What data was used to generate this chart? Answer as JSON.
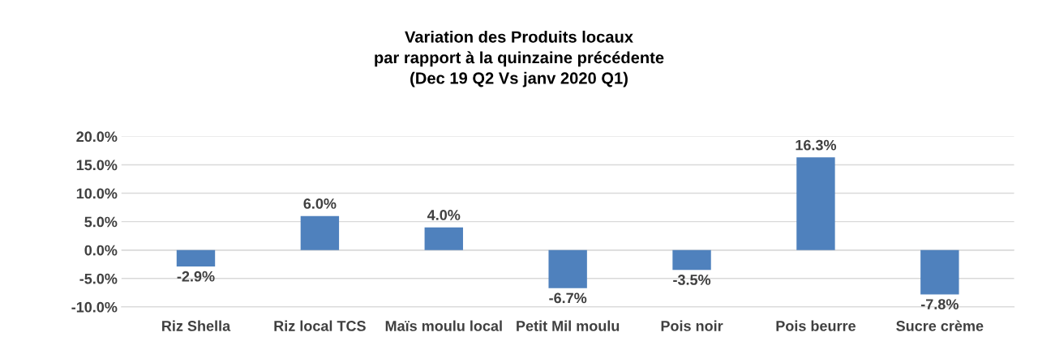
{
  "chart_data": {
    "type": "bar",
    "title": "Variation des Produits locaux\npar rapport à la quinzaine précédente\n(Dec 19 Q2 Vs janv 2020 Q1)",
    "categories": [
      "Riz Shella",
      "Riz local TCS",
      "Maïs moulu local",
      "Petit Mil moulu",
      "Pois noir",
      "Pois beurre",
      "Sucre crème"
    ],
    "values": [
      -2.9,
      6.0,
      4.0,
      -6.7,
      -3.5,
      16.3,
      -7.8
    ],
    "value_labels": [
      "-2.9%",
      "6.0%",
      "4.0%",
      "-6.7%",
      "-3.5%",
      "16.3%",
      "-7.8%"
    ],
    "color": "#4f81bd",
    "ylim": [
      -10,
      20
    ],
    "yticks": [
      {
        "value": -10,
        "label": "-10.0%"
      },
      {
        "value": -5,
        "label": "-5.0%"
      },
      {
        "value": 0,
        "label": "0.0%"
      },
      {
        "value": 5,
        "label": "5.0%"
      },
      {
        "value": 10,
        "label": "10.0%"
      },
      {
        "value": 15,
        "label": "15.0%"
      },
      {
        "value": 20,
        "label": "20.0%"
      }
    ],
    "grid": "y",
    "legend": false
  }
}
